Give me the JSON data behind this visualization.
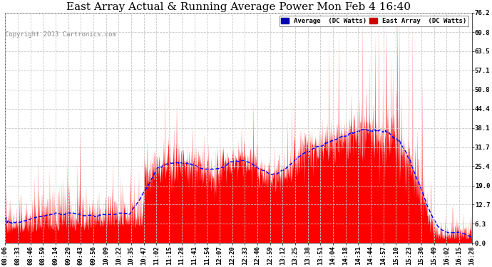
{
  "title": "East Array Actual & Running Average Power Mon Feb 4 16:40",
  "copyright": "Copyright 2013 Cartronics.com",
  "yticks": [
    0.0,
    6.3,
    12.7,
    19.0,
    25.4,
    31.7,
    38.1,
    44.4,
    50.8,
    57.1,
    63.5,
    69.8,
    76.2
  ],
  "ylim": [
    0.0,
    76.2
  ],
  "background_color": "#ffffff",
  "grid_color": "#c8c8c8",
  "bar_color": "#ff0000",
  "avg_color": "#0000ff",
  "title_fontsize": 11,
  "tick_label_fontsize": 6.5,
  "x_tick_labels": [
    "08:06",
    "08:33",
    "08:46",
    "08:59",
    "09:14",
    "09:29",
    "09:43",
    "09:56",
    "10:09",
    "10:22",
    "10:35",
    "10:47",
    "11:02",
    "11:15",
    "11:28",
    "11:41",
    "11:54",
    "12:07",
    "12:20",
    "12:33",
    "12:46",
    "12:59",
    "13:12",
    "13:25",
    "13:38",
    "13:51",
    "14:04",
    "14:18",
    "14:31",
    "14:44",
    "14:57",
    "15:10",
    "15:23",
    "15:36",
    "15:49",
    "16:02",
    "16:15",
    "16:28"
  ]
}
